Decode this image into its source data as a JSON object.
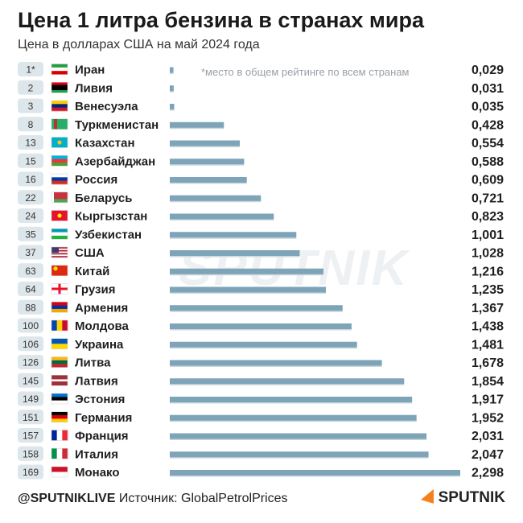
{
  "header": {
    "title": "Цена 1 литра бензина в странах мира",
    "subtitle": "Цена в долларах США на май 2024 года",
    "note": "*место в общем рейтинге по всем странам"
  },
  "watermark": "SPUTNIK",
  "footer": {
    "handle": "@SPUTNIKLIVE",
    "source": "Источник: GlobalPetrolPrices",
    "logo": "SPUTNIK"
  },
  "colors": {
    "bar": "#7ea4b8",
    "bar_shadow": "#c9d6dd",
    "rank_badge": "#dde6eb"
  },
  "chart_data": {
    "type": "bar",
    "orientation": "horizontal",
    "categories": [
      "Иран",
      "Ливия",
      "Венесуэла",
      "Туркменистан",
      "Казахстан",
      "Азербайджан",
      "Россия",
      "Беларусь",
      "Кыргызстан",
      "Узбекистан",
      "США",
      "Китай",
      "Грузия",
      "Армения",
      "Молдова",
      "Украина",
      "Литва",
      "Латвия",
      "Эстония",
      "Германия",
      "Франция",
      "Италия",
      "Монако"
    ],
    "ranks": [
      "1*",
      "2",
      "3",
      "8",
      "13",
      "15",
      "16",
      "22",
      "24",
      "35",
      "37",
      "63",
      "64",
      "88",
      "100",
      "106",
      "126",
      "145",
      "149",
      "151",
      "157",
      "158",
      "169"
    ],
    "value_labels": [
      "0,029",
      "0,031",
      "0,035",
      "0,428",
      "0,554",
      "0,588",
      "0,609",
      "0,721",
      "0,823",
      "1,001",
      "1,028",
      "1,216",
      "1,235",
      "1,367",
      "1,438",
      "1,481",
      "1,678",
      "1,854",
      "1,917",
      "1,952",
      "2,031",
      "2,047",
      "2,298"
    ],
    "values": [
      0.029,
      0.031,
      0.035,
      0.428,
      0.554,
      0.588,
      0.609,
      0.721,
      0.823,
      1.001,
      1.028,
      1.216,
      1.235,
      1.367,
      1.438,
      1.481,
      1.678,
      1.854,
      1.917,
      1.952,
      2.031,
      2.047,
      2.298
    ],
    "flags": [
      "iran-flag",
      "libya-flag",
      "venezuela-flag",
      "turkmenistan-flag",
      "kazakhstan-flag",
      "azerbaijan-flag",
      "russia-flag",
      "belarus-flag",
      "kyrgyzstan-flag",
      "uzbekistan-flag",
      "usa-flag",
      "china-flag",
      "georgia-flag",
      "armenia-flag",
      "moldova-flag",
      "ukraine-flag",
      "lithuania-flag",
      "latvia-flag",
      "estonia-flag",
      "germany-flag",
      "france-flag",
      "italy-flag",
      "monaco-flag"
    ],
    "xlim": [
      0,
      2.298
    ]
  }
}
